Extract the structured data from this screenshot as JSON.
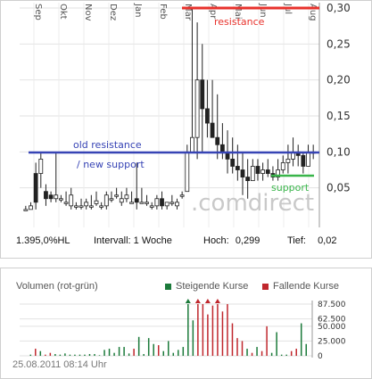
{
  "chart_data": [
    {
      "type": "candlestick",
      "x_tick_labels": [
        "Sep",
        "Okt",
        "Nov",
        "Dez",
        "Jan",
        "Feb",
        "Mar",
        "Apr",
        "Mai",
        "Jun",
        "Jul",
        "Aug"
      ],
      "y_tick_labels": [
        "0,05",
        "0,10",
        "0,15",
        "0,20",
        "0,25",
        "0,30"
      ],
      "ylim": [
        0.0,
        0.3
      ],
      "grid": true,
      "annotations": [
        {
          "text": "resistance",
          "color": "#e8322c",
          "level": 0.3
        },
        {
          "text": "old resistance",
          "color": "#3744b5",
          "level": 0.1
        },
        {
          "text": "/ new support",
          "color": "#3744b5",
          "level": 0.1
        },
        {
          "text": "support",
          "color": "#39b54a",
          "level": 0.065
        }
      ],
      "watermark": ".comdirect",
      "candles": [
        [
          0.025,
          0.02,
          0.02,
          0.02
        ],
        [
          0.03,
          0.02,
          0.02,
          0.025
        ],
        [
          0.085,
          0.02,
          0.07,
          0.03
        ],
        [
          0.1,
          0.05,
          0.07,
          0.09
        ],
        [
          0.055,
          0.025,
          0.045,
          0.035
        ],
        [
          0.045,
          0.03,
          0.04,
          0.035
        ],
        [
          0.1,
          0.03,
          0.035,
          0.04
        ],
        [
          0.04,
          0.03,
          0.035,
          0.035
        ],
        [
          0.045,
          0.025,
          0.03,
          0.03
        ],
        [
          0.05,
          0.02,
          0.025,
          0.04
        ],
        [
          0.03,
          0.02,
          0.025,
          0.025
        ],
        [
          0.035,
          0.02,
          0.025,
          0.025
        ],
        [
          0.035,
          0.02,
          0.025,
          0.03
        ],
        [
          0.04,
          0.02,
          0.025,
          0.025
        ],
        [
          0.045,
          0.025,
          0.028,
          0.032
        ],
        [
          0.03,
          0.02,
          0.025,
          0.025
        ],
        [
          0.045,
          0.02,
          0.025,
          0.04
        ],
        [
          0.045,
          0.03,
          0.035,
          0.035
        ],
        [
          0.05,
          0.035,
          0.04,
          0.04
        ],
        [
          0.045,
          0.025,
          0.03,
          0.035
        ],
        [
          0.05,
          0.03,
          0.035,
          0.04
        ],
        [
          0.045,
          0.03,
          0.03,
          0.03
        ],
        [
          0.085,
          0.02,
          0.035,
          0.03
        ],
        [
          0.05,
          0.03,
          0.03,
          0.03
        ],
        [
          0.04,
          0.025,
          0.03,
          0.03
        ],
        [
          0.03,
          0.02,
          0.025,
          0.025
        ],
        [
          0.04,
          0.02,
          0.025,
          0.035
        ],
        [
          0.045,
          0.02,
          0.035,
          0.025
        ],
        [
          0.03,
          0.02,
          0.025,
          0.03
        ],
        [
          0.04,
          0.025,
          0.03,
          0.03
        ],
        [
          0.035,
          0.02,
          0.025,
          0.03
        ],
        [
          0.045,
          0.035,
          0.04,
          0.04
        ],
        [
          0.11,
          0.045,
          0.045,
          0.1
        ],
        [
          0.299,
          0.1,
          0.1,
          0.12
        ],
        [
          0.28,
          0.09,
          0.12,
          0.2
        ],
        [
          0.25,
          0.1,
          0.2,
          0.16
        ],
        [
          0.2,
          0.12,
          0.16,
          0.14
        ],
        [
          0.2,
          0.12,
          0.14,
          0.12
        ],
        [
          0.18,
          0.09,
          0.12,
          0.11
        ],
        [
          0.14,
          0.09,
          0.11,
          0.1
        ],
        [
          0.13,
          0.07,
          0.1,
          0.09
        ],
        [
          0.12,
          0.07,
          0.09,
          0.08
        ],
        [
          0.11,
          0.06,
          0.08,
          0.075
        ],
        [
          0.1,
          0.04,
          0.075,
          0.065
        ],
        [
          0.09,
          0.035,
          0.065,
          0.06
        ],
        [
          0.09,
          0.06,
          0.06,
          0.08
        ],
        [
          0.09,
          0.06,
          0.08,
          0.07
        ],
        [
          0.085,
          0.06,
          0.07,
          0.075
        ],
        [
          0.09,
          0.065,
          0.075,
          0.07
        ],
        [
          0.08,
          0.06,
          0.07,
          0.065
        ],
        [
          0.09,
          0.06,
          0.065,
          0.075
        ],
        [
          0.095,
          0.07,
          0.075,
          0.085
        ],
        [
          0.11,
          0.07,
          0.085,
          0.09
        ],
        [
          0.12,
          0.08,
          0.09,
          0.1
        ],
        [
          0.11,
          0.08,
          0.1,
          0.095
        ],
        [
          0.1,
          0.07,
          0.095,
          0.08
        ],
        [
          0.11,
          0.08,
          0.08,
          0.1
        ],
        [
          0.11,
          0.09,
          0.1,
          0.1
        ]
      ],
      "stats": {
        "change": "1.395,0%HL",
        "interval_label": "Intervall:",
        "interval_value": "1 Woche",
        "high_label": "Hoch:",
        "high_value": "0,299",
        "low_label": "Tief:",
        "low_value": "0,02"
      }
    },
    {
      "type": "bar",
      "title": "Volumen (rot-grün)",
      "legend": [
        {
          "label": "Steigende Kurse",
          "color": "#1b7a3a"
        },
        {
          "label": "Fallende Kurse",
          "color": "#c0272d"
        }
      ],
      "y_tick_labels": [
        "0",
        "25.000",
        "50.000",
        "62.500",
        "87.500"
      ],
      "ylim": [
        0,
        87500
      ],
      "values": [
        0,
        2000,
        12000,
        8000,
        2000,
        5000,
        3000,
        2000,
        4000,
        2000,
        2000,
        2000,
        2000,
        3000,
        3000,
        1000,
        10000,
        12000,
        5000,
        15000,
        15000,
        4000,
        12000,
        32000,
        3000,
        30000,
        20000,
        18000,
        8000,
        25000,
        5000,
        10000,
        15000,
        87500,
        60000,
        87500,
        87500,
        70000,
        85000,
        87500,
        75000,
        87500,
        55000,
        30000,
        25000,
        12000,
        5000,
        15000,
        8000,
        50000,
        5000,
        40000,
        2000,
        2000,
        8000,
        12000,
        55000,
        20000
      ],
      "overflow_bars": [
        33,
        35,
        37,
        39
      ],
      "footer": "25.08.2011 08:14 Uhr"
    }
  ]
}
